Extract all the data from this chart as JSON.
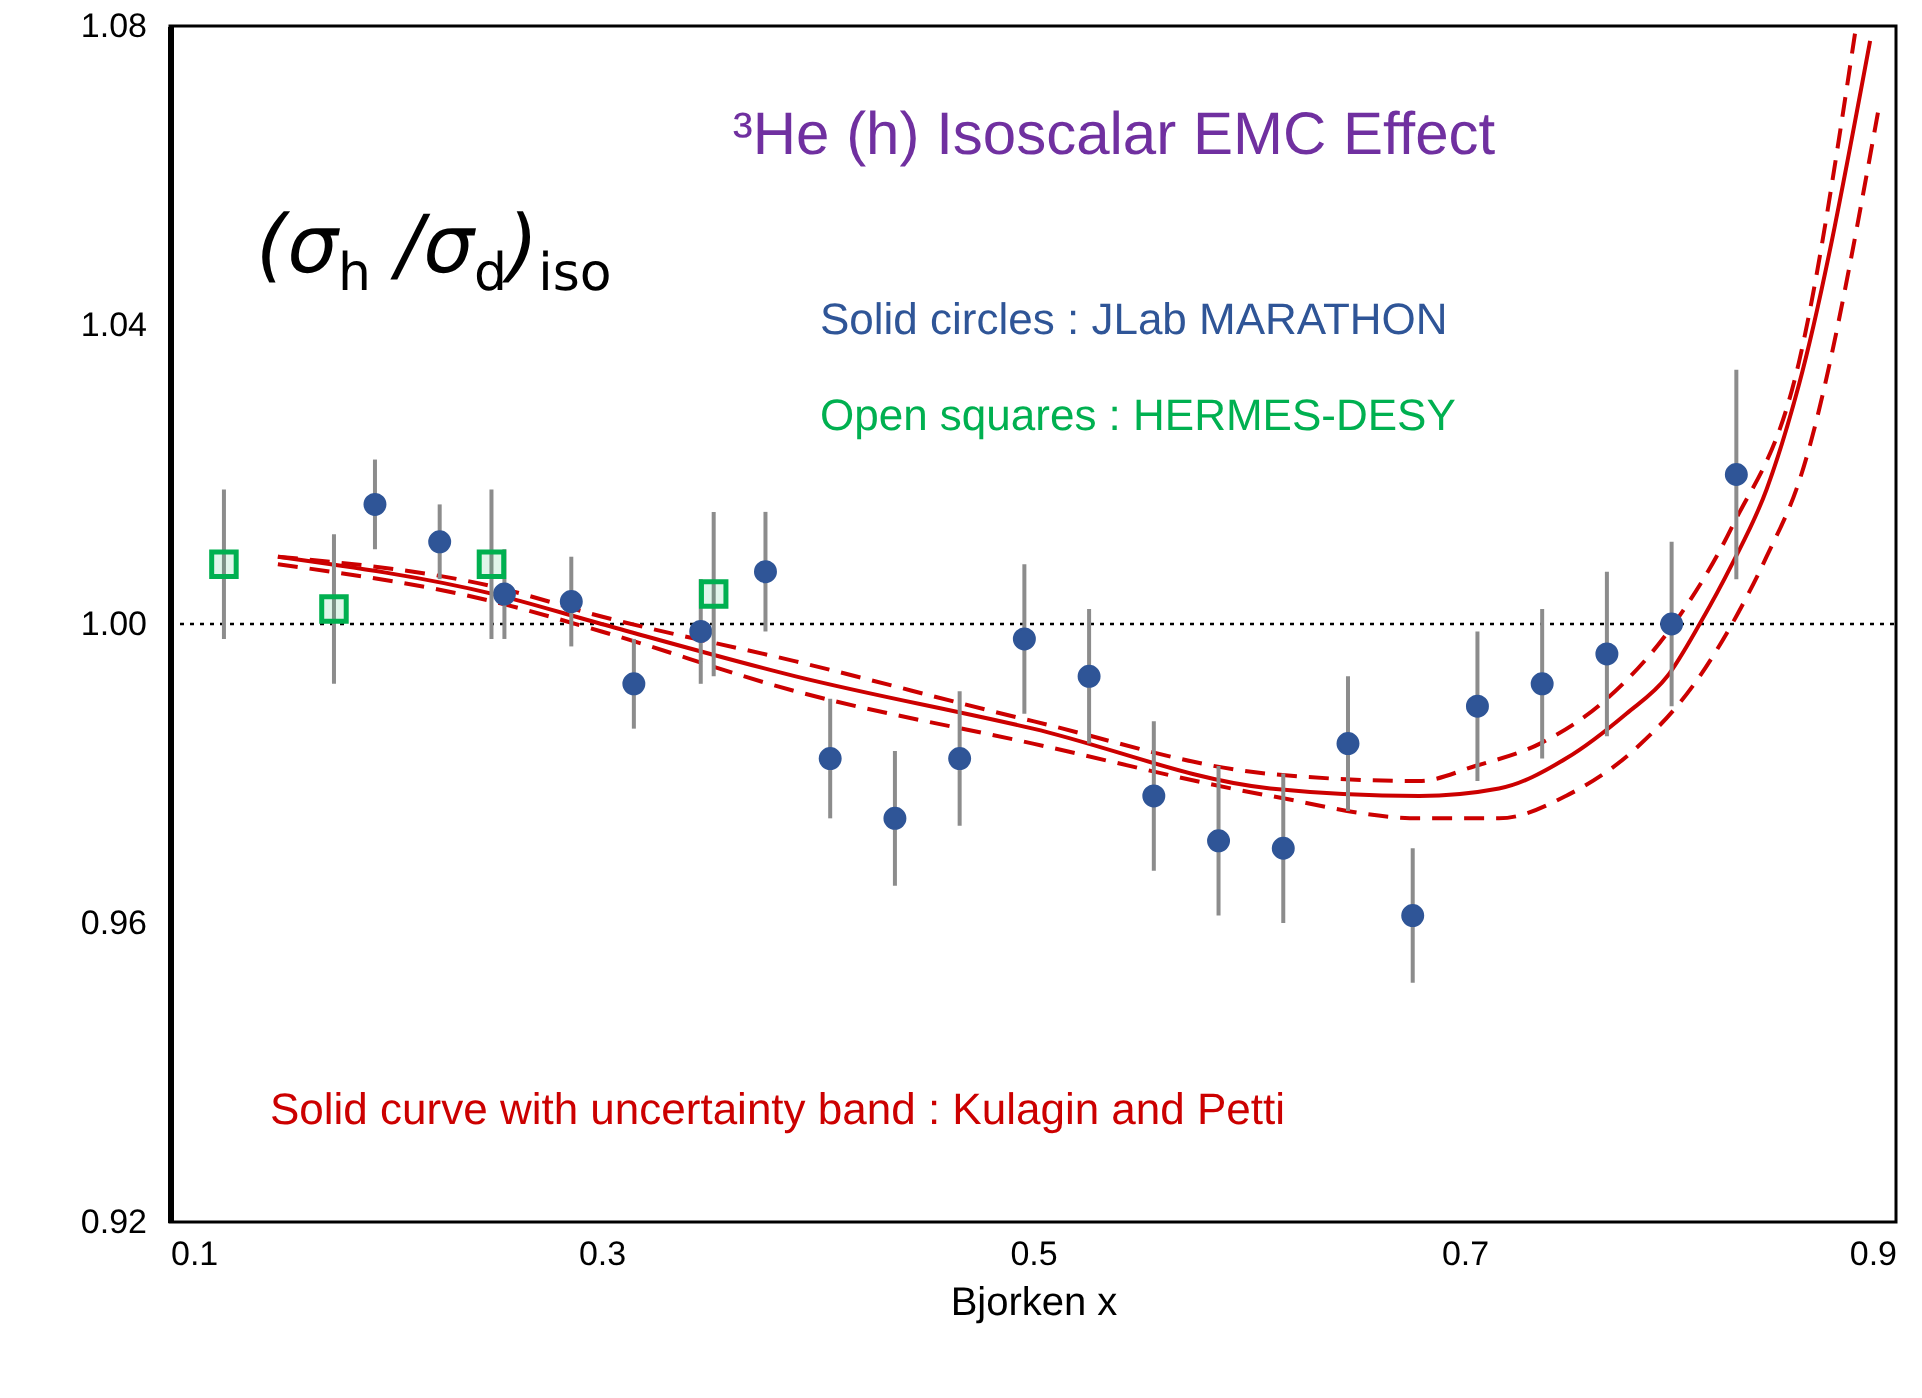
{
  "chart_data": {
    "type": "scatter",
    "title": "³He (h) Isoscalar EMC Effect",
    "xlabel": "Bjorken x",
    "ylabel": "(σ$_{h}$ /σ$_{d}$)$_{iso}$",
    "xlim": [
      0.1,
      0.9
    ],
    "xticks": [
      0.1,
      0.3,
      0.5,
      0.7,
      0.9
    ],
    "ylim": [
      0.92,
      1.08
    ],
    "yticks": [
      0.92,
      0.96,
      {
        "value": 1,
        "label": "1.00"
      },
      1.04,
      1.08
    ],
    "grid": false,
    "ref_lines": [
      {
        "axis": "y",
        "value": 1,
        "color": "#000000",
        "line_style": "dotted"
      }
    ],
    "series": [
      {
        "type": "line",
        "color": "#cc0000",
        "line_style": "dashed",
        "marker": "none",
        "x": [
          0.15,
          0.25,
          0.3,
          0.39,
          0.5,
          0.608,
          0.679,
          0.705,
          0.735,
          0.766,
          0.797,
          0.824,
          0.855,
          0.881
        ],
        "values": [
          1.009,
          1.005,
          1.001,
          0.995,
          0.987,
          0.98,
          0.979,
          0.981,
          0.984,
          0.99,
          1.0,
          1.013,
          1.035,
          1.079
        ]
      },
      {
        "type": "line",
        "color": "#cc0000",
        "line_style": "dashed",
        "marker": "none",
        "x": [
          0.15,
          0.25,
          0.3,
          0.39,
          0.5,
          0.61,
          0.679,
          0.716,
          0.747,
          0.778,
          0.809,
          0.824,
          0.84,
          0.855,
          0.892
        ],
        "values": [
          1.008,
          1.003,
          0.999,
          0.991,
          0.984,
          0.977,
          0.974,
          0.974,
          0.977,
          0.983,
          0.993,
          1.0,
          1.009,
          1.019,
          1.069
        ]
      },
      {
        "type": "line",
        "name": "Solid curve with uncertainty band : Kulagin and Petti",
        "color": "#cc0000",
        "line_style": "solid",
        "marker": "none",
        "x": [
          0.15,
          0.25,
          0.3,
          0.39,
          0.5,
          0.61,
          0.679,
          0.716,
          0.747,
          0.775,
          0.794,
          0.809,
          0.824,
          0.84,
          0.855,
          0.888
        ],
        "values": [
          1.009,
          1.004,
          1.0,
          0.993,
          0.986,
          0.978,
          0.977,
          0.978,
          0.982,
          0.988,
          0.993,
          1.0,
          1.008,
          1.018,
          1.032,
          1.078
        ]
      },
      {
        "name": "Solid circles : JLab MARATHON",
        "color": "#2f5597",
        "marker": "circle",
        "x": [
          0.195,
          0.225,
          0.255,
          0.286,
          0.315,
          0.346,
          0.376,
          0.406,
          0.436,
          0.466,
          0.496,
          0.526,
          0.556,
          0.586,
          0.616,
          0.646,
          0.676,
          0.706,
          0.736,
          0.766,
          0.796,
          0.826
        ],
        "values": [
          1.016,
          1.011,
          1.004,
          1.003,
          0.992,
          0.999,
          1.007,
          0.982,
          0.974,
          0.982,
          0.998,
          0.993,
          0.977,
          0.971,
          0.97,
          0.984,
          0.961,
          0.989,
          0.992,
          0.996,
          1.0,
          1.02
        ],
        "errors": [
          0.006,
          0.005,
          0.006,
          0.006,
          0.006,
          0.007,
          0.008,
          0.008,
          0.009,
          0.009,
          0.01,
          0.009,
          0.01,
          0.01,
          0.01,
          0.009,
          0.009,
          0.01,
          0.01,
          0.011,
          0.011,
          0.014
        ]
      },
      {
        "name": "Open squares : HERMES-DESY",
        "color": "#00b050",
        "marker": "square",
        "x": [
          0.125,
          0.176,
          0.249,
          0.352
        ],
        "values": [
          1.008,
          1.002,
          1.008,
          1.004
        ],
        "errors": [
          0.01,
          0.01,
          0.01,
          0.011
        ]
      }
    ]
  }
}
